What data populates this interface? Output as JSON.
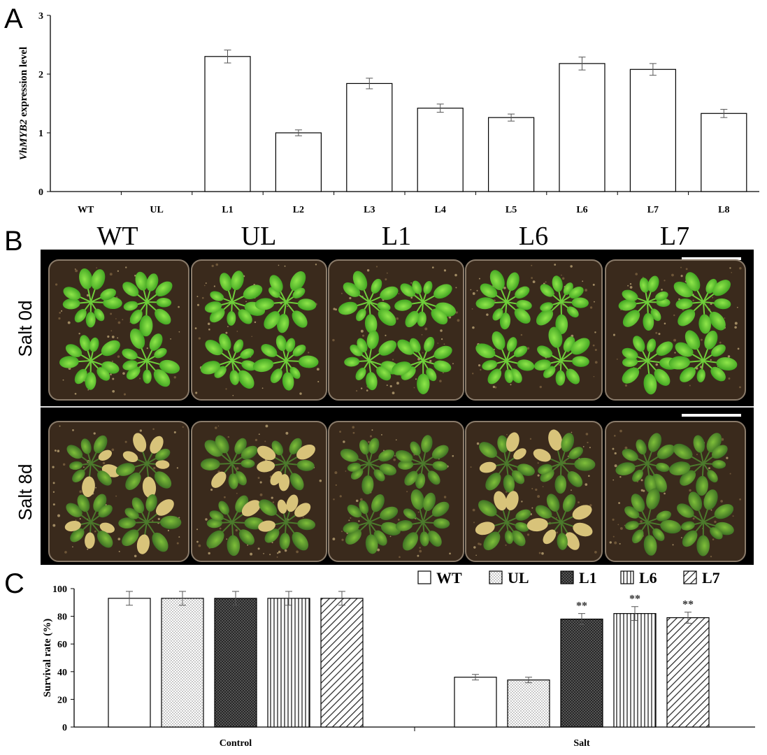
{
  "panels": {
    "a": "A",
    "b": "B",
    "c": "C"
  },
  "chart_data": [
    {
      "type": "bar",
      "panel": "A",
      "categories": [
        "WT",
        "UL",
        "L1",
        "L2",
        "L3",
        "L4",
        "L5",
        "L6",
        "L7",
        "L8"
      ],
      "values": [
        0,
        0,
        2.3,
        1.0,
        1.84,
        1.42,
        1.26,
        2.18,
        2.08,
        1.33
      ],
      "errors": [
        0,
        0,
        0.11,
        0.05,
        0.09,
        0.07,
        0.06,
        0.11,
        0.1,
        0.07
      ],
      "ylabel_italic": "VhMYB2",
      "ylabel_rest": " expression level",
      "ylim": [
        0,
        3
      ],
      "yticks": [
        0,
        1,
        2,
        3
      ]
    },
    {
      "type": "bar",
      "panel": "C",
      "groups": [
        "Control",
        "Salt"
      ],
      "series": [
        {
          "name": "WT",
          "values": [
            93,
            36
          ],
          "errors": [
            5,
            2
          ],
          "pattern": "none"
        },
        {
          "name": "UL",
          "values": [
            93,
            34
          ],
          "errors": [
            5,
            2
          ],
          "pattern": "dots"
        },
        {
          "name": "L1",
          "values": [
            93,
            78
          ],
          "errors": [
            5,
            4
          ],
          "pattern": "crosshatch"
        },
        {
          "name": "L6",
          "values": [
            93,
            82
          ],
          "errors": [
            5,
            5
          ],
          "pattern": "vertical"
        },
        {
          "name": "L7",
          "values": [
            93,
            79
          ],
          "errors": [
            5,
            4
          ],
          "pattern": "diagonal"
        }
      ],
      "significance": [
        [
          "",
          ""
        ],
        [
          "",
          ""
        ],
        [
          "",
          "**"
        ],
        [
          "",
          "**"
        ],
        [
          "",
          "**"
        ]
      ],
      "ylabel": "Survival rate (%)",
      "ylim": [
        0,
        100
      ],
      "yticks": [
        0,
        20,
        40,
        60,
        80,
        100
      ]
    }
  ],
  "photo": {
    "columns": [
      "WT",
      "UL",
      "L1",
      "L6",
      "L7"
    ],
    "rows": [
      "Salt 0d",
      "Salt 8d"
    ]
  }
}
